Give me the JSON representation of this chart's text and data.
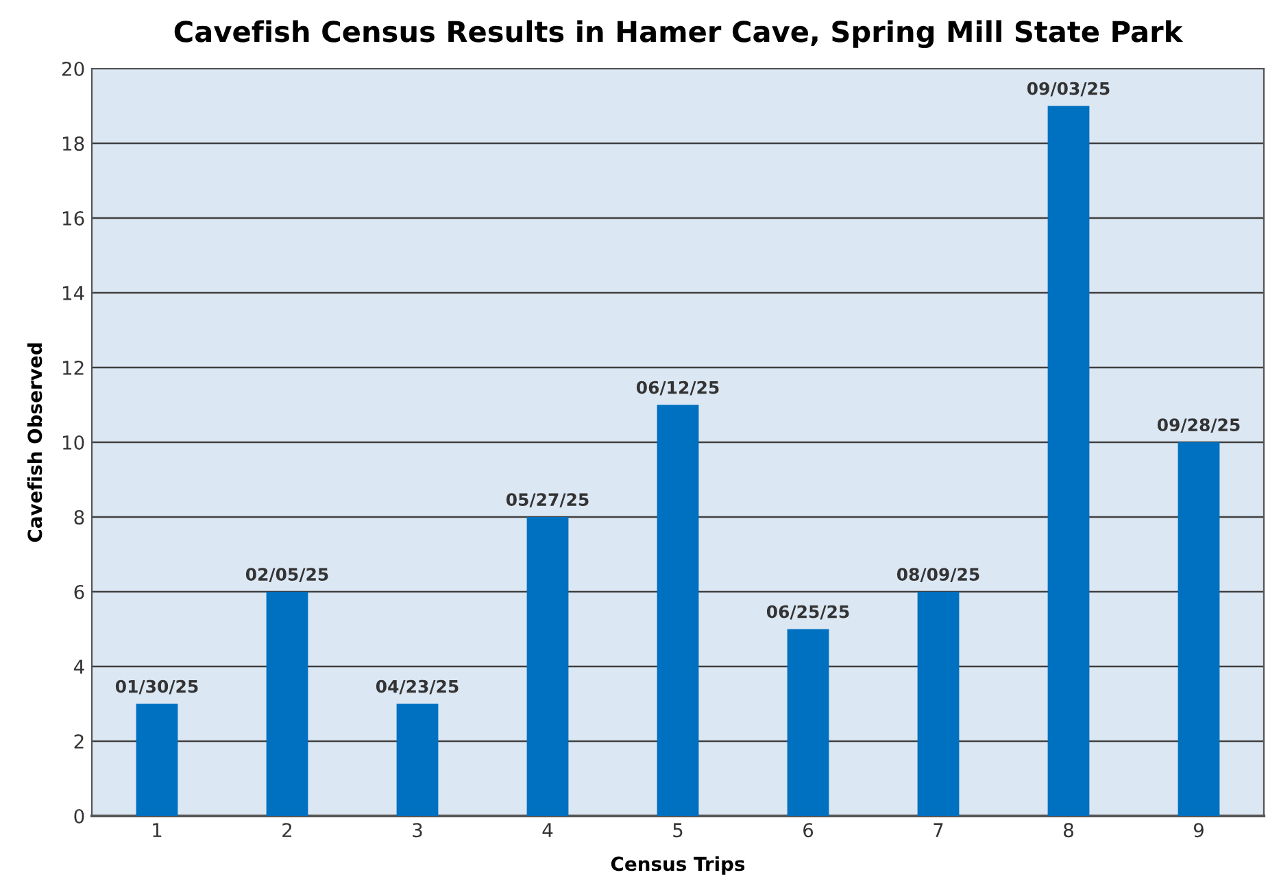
{
  "chart_data": {
    "type": "bar",
    "title": "Cavefish Census Results in Hamer Cave, Spring Mill State Park",
    "xlabel": "Census Trips",
    "ylabel": "Cavefish Observed",
    "categories": [
      "1",
      "2",
      "3",
      "4",
      "5",
      "6",
      "7",
      "8",
      "9"
    ],
    "values": [
      3,
      6,
      3,
      8,
      11,
      5,
      6,
      19,
      10
    ],
    "value_labels": [
      "01/30/25",
      "02/05/25",
      "04/23/25",
      "05/27/25",
      "06/12/25",
      "06/25/25",
      "08/09/25",
      "09/03/25",
      "09/28/25"
    ],
    "color": "#0070c0",
    "ylim": [
      0,
      20
    ],
    "yticks": [
      0,
      2,
      4,
      6,
      8,
      10,
      12,
      14,
      16,
      18,
      20
    ],
    "grid": "y"
  }
}
